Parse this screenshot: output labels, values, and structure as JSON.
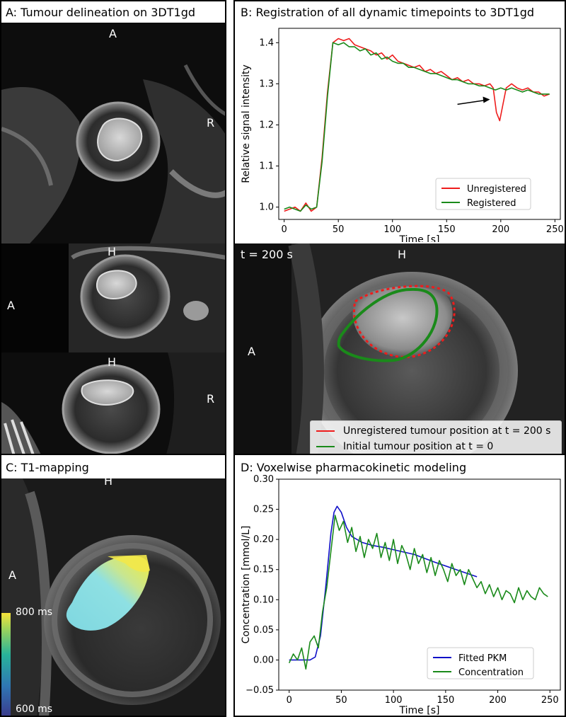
{
  "panel_a": {
    "title": "A: Tumour delineation on 3DT1gd",
    "view1": {
      "top": "A",
      "right": "R"
    },
    "view2": {
      "top": "H",
      "left": "A"
    },
    "view3": {
      "top": "H",
      "right": "R"
    }
  },
  "panel_b": {
    "title": "B: Registration of all dynamic timepoints to 3DT1gd",
    "image": {
      "time_label": "t = 200 s",
      "top": "H",
      "left": "A",
      "legend": [
        "Unregistered tumour position at t = 200 s",
        "Initial tumour position at t = 0"
      ]
    }
  },
  "panel_c": {
    "title": "C: T1-mapping",
    "top": "H",
    "left": "A",
    "colorbar": {
      "max_label": "800 ms",
      "min_label": "600 ms"
    }
  },
  "panel_d": {
    "title": "D: Voxelwise pharmacokinetic modeling"
  },
  "colors": {
    "unregistered": "#ee1c1c",
    "registered": "#1a8a1a",
    "fitted": "#1010c8",
    "concentration": "#1a8a1a",
    "contour": "#d8d8d8"
  },
  "chart_data": [
    {
      "type": "line",
      "xlabel": "Time [s]",
      "ylabel": "Relative signal intensity",
      "xlim": [
        -5,
        255
      ],
      "ylim": [
        0.97,
        1.435
      ],
      "xticks": [
        0,
        50,
        100,
        150,
        200,
        250
      ],
      "yticks": [
        1.0,
        1.1,
        1.2,
        1.3,
        1.4
      ],
      "xtick_labels": [
        "0",
        "50",
        "100",
        "150",
        "200",
        "250"
      ],
      "ytick_labels": [
        "1.0",
        "1.1",
        "1.2",
        "1.3",
        "1.4"
      ],
      "legend": "bottom-right",
      "series": [
        {
          "name": "Unregistered",
          "color": "#ee1c1c",
          "x": [
            0,
            5,
            10,
            15,
            20,
            25,
            30,
            35,
            40,
            45,
            50,
            55,
            60,
            65,
            70,
            75,
            80,
            85,
            90,
            95,
            100,
            105,
            110,
            115,
            120,
            125,
            130,
            135,
            140,
            145,
            150,
            155,
            160,
            165,
            170,
            175,
            180,
            185,
            190,
            193,
            196,
            199,
            202,
            205,
            210,
            215,
            220,
            225,
            230,
            235,
            240,
            245
          ],
          "y": [
            0.99,
            0.995,
            1.0,
            0.99,
            1.01,
            0.99,
            1.0,
            1.12,
            1.28,
            1.4,
            1.41,
            1.405,
            1.41,
            1.395,
            1.39,
            1.385,
            1.38,
            1.37,
            1.375,
            1.36,
            1.37,
            1.355,
            1.35,
            1.345,
            1.34,
            1.345,
            1.33,
            1.335,
            1.325,
            1.33,
            1.32,
            1.31,
            1.315,
            1.305,
            1.31,
            1.3,
            1.3,
            1.295,
            1.3,
            1.29,
            1.23,
            1.21,
            1.25,
            1.29,
            1.3,
            1.29,
            1.285,
            1.29,
            1.28,
            1.28,
            1.27,
            1.275
          ]
        },
        {
          "name": "Registered",
          "color": "#1a8a1a",
          "x": [
            0,
            5,
            10,
            15,
            20,
            25,
            30,
            35,
            40,
            45,
            50,
            55,
            60,
            65,
            70,
            75,
            80,
            85,
            90,
            95,
            100,
            105,
            110,
            115,
            120,
            125,
            130,
            135,
            140,
            145,
            150,
            155,
            160,
            165,
            170,
            175,
            180,
            185,
            190,
            195,
            200,
            205,
            210,
            215,
            220,
            225,
            230,
            235,
            240,
            245
          ],
          "y": [
            0.995,
            1.0,
            0.995,
            0.99,
            1.005,
            0.995,
            1.0,
            1.11,
            1.27,
            1.4,
            1.395,
            1.4,
            1.39,
            1.39,
            1.38,
            1.385,
            1.37,
            1.375,
            1.36,
            1.365,
            1.355,
            1.35,
            1.35,
            1.34,
            1.34,
            1.335,
            1.33,
            1.325,
            1.325,
            1.32,
            1.315,
            1.31,
            1.31,
            1.305,
            1.3,
            1.3,
            1.295,
            1.295,
            1.29,
            1.285,
            1.29,
            1.285,
            1.29,
            1.285,
            1.28,
            1.285,
            1.28,
            1.275,
            1.275,
            1.275
          ]
        }
      ],
      "annotations": [
        {
          "type": "arrow",
          "from": [
            160,
            1.25
          ],
          "to": [
            190,
            1.262
          ]
        }
      ]
    },
    {
      "type": "line",
      "xlabel": "Time [s]",
      "ylabel": "Concentration [mmol/L]",
      "xlim": [
        -10,
        260
      ],
      "ylim": [
        -0.05,
        0.3
      ],
      "xticks": [
        0,
        50,
        100,
        150,
        200,
        250
      ],
      "yticks": [
        -0.05,
        0.0,
        0.05,
        0.1,
        0.15,
        0.2,
        0.25,
        0.3
      ],
      "xtick_labels": [
        "0",
        "50",
        "100",
        "150",
        "200",
        "250"
      ],
      "ytick_labels": [
        "−0.05",
        "0.00",
        "0.05",
        "0.10",
        "0.15",
        "0.20",
        "0.25",
        "0.30"
      ],
      "legend": "bottom-right",
      "series": [
        {
          "name": "Fitted PKM",
          "color": "#1010c8",
          "x": [
            0,
            10,
            20,
            25,
            30,
            35,
            40,
            43,
            46,
            50,
            55,
            60,
            70,
            80,
            90,
            100,
            120,
            140,
            160,
            180
          ],
          "y": [
            0.0,
            0.0,
            0.0,
            0.005,
            0.04,
            0.12,
            0.21,
            0.245,
            0.255,
            0.245,
            0.22,
            0.205,
            0.195,
            0.19,
            0.187,
            0.183,
            0.175,
            0.162,
            0.15,
            0.138
          ]
        },
        {
          "name": "Concentration",
          "color": "#1a8a1a",
          "x": [
            0,
            4,
            8,
            12,
            16,
            20,
            24,
            28,
            32,
            36,
            40,
            44,
            48,
            52,
            56,
            60,
            64,
            68,
            72,
            76,
            80,
            84,
            88,
            92,
            96,
            100,
            104,
            108,
            112,
            116,
            120,
            124,
            128,
            132,
            136,
            140,
            144,
            148,
            152,
            156,
            160,
            164,
            168,
            172,
            176,
            180,
            184,
            188,
            192,
            196,
            200,
            204,
            208,
            212,
            216,
            220,
            224,
            228,
            232,
            236,
            240,
            244,
            248
          ],
          "y": [
            -0.005,
            0.01,
            0.0,
            0.02,
            -0.015,
            0.03,
            0.04,
            0.02,
            0.08,
            0.12,
            0.18,
            0.24,
            0.215,
            0.23,
            0.195,
            0.22,
            0.18,
            0.205,
            0.17,
            0.2,
            0.185,
            0.21,
            0.17,
            0.195,
            0.165,
            0.2,
            0.16,
            0.19,
            0.175,
            0.15,
            0.185,
            0.16,
            0.175,
            0.145,
            0.17,
            0.14,
            0.165,
            0.15,
            0.13,
            0.16,
            0.14,
            0.15,
            0.125,
            0.15,
            0.135,
            0.12,
            0.13,
            0.11,
            0.125,
            0.105,
            0.12,
            0.1,
            0.115,
            0.11,
            0.095,
            0.12,
            0.1,
            0.115,
            0.105,
            0.1,
            0.12,
            0.11,
            0.105
          ]
        }
      ]
    }
  ]
}
